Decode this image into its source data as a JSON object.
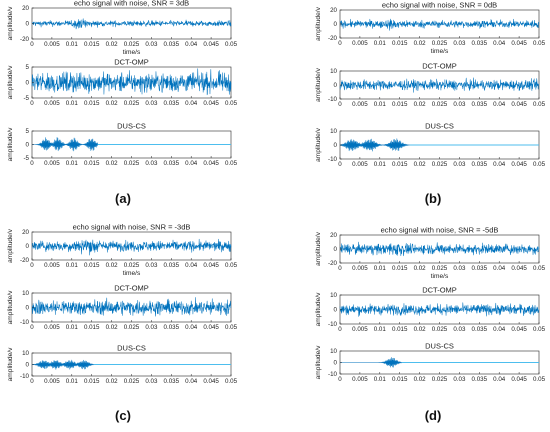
{
  "colors": {
    "signal": "#0072BD",
    "flat": "#4DBEEE",
    "axes": "#262626"
  },
  "chart_data": [
    {
      "panel": "(a)",
      "plots": [
        {
          "title": "echo signal with noise, SNR = 3dB",
          "type": "line",
          "ylabel": "amplitude/v",
          "xlabel": "time/s",
          "xlim": [
            0,
            0.05
          ],
          "ylim": [
            -20,
            20
          ],
          "yticks": [
            -20,
            0,
            20
          ],
          "noise": 2.5,
          "burst_centers": [
            0.012
          ],
          "burst_amp": 4,
          "burst_width": 0.003
        },
        {
          "title": "DCT-OMP",
          "type": "line",
          "ylabel": "amplitude/v",
          "xlabel": "",
          "xlim": [
            0,
            0.05
          ],
          "ylim": [
            -5,
            5
          ],
          "yticks": [
            -5,
            0,
            5
          ],
          "noise": 2.2
        },
        {
          "title": "DUS-CS",
          "type": "line",
          "ylabel": "amplitude/v",
          "xlabel": "",
          "xlim": [
            0,
            0.05
          ],
          "ylim": [
            -5,
            5
          ],
          "yticks": [
            -5,
            0,
            5
          ],
          "noise": 0,
          "burst_centers": [
            0.0035,
            0.0065,
            0.0105,
            0.015
          ],
          "burst_amp": 2.8,
          "burst_width": 0.0012,
          "flat_after": 0.0165
        }
      ]
    },
    {
      "panel": "(b)",
      "plots": [
        {
          "title": "echo signal with noise, SNR = 0dB",
          "type": "line",
          "ylabel": "amplitude/v",
          "xlabel": "time/s",
          "xlim": [
            0,
            0.05
          ],
          "ylim": [
            -20,
            20
          ],
          "yticks": [
            -20,
            0,
            20
          ],
          "noise": 3.5,
          "burst_centers": [
            0.013
          ],
          "burst_amp": 5,
          "burst_width": 0.003
        },
        {
          "title": "DCT-OMP",
          "type": "line",
          "ylabel": "amplitude/v",
          "xlabel": "",
          "xlim": [
            0,
            0.05
          ],
          "ylim": [
            -10,
            10
          ],
          "yticks": [
            -10,
            0,
            10
          ],
          "noise": 2.5
        },
        {
          "title": "DUS-CS",
          "type": "line",
          "ylabel": "amplitude/v",
          "xlabel": "",
          "xlim": [
            0,
            0.05
          ],
          "ylim": [
            -10,
            10
          ],
          "yticks": [
            -10,
            0,
            10
          ],
          "noise": 0,
          "burst_centers": [
            0.003,
            0.0075,
            0.014
          ],
          "burst_amp": 5,
          "burst_width": 0.0018,
          "flat_after": 0.0175
        }
      ]
    },
    {
      "panel": "(c)",
      "plots": [
        {
          "title": "echo signal with noise, SNR = -3dB",
          "type": "line",
          "ylabel": "amplitude/v",
          "xlabel": "time/s",
          "xlim": [
            0,
            0.05
          ],
          "ylim": [
            -20,
            20
          ],
          "yticks": [
            -20,
            0,
            20
          ],
          "noise": 5,
          "burst_centers": [
            0.014
          ],
          "burst_amp": 6,
          "burst_width": 0.003
        },
        {
          "title": "DCT-OMP",
          "type": "line",
          "ylabel": "amplitude/v",
          "xlabel": "",
          "xlim": [
            0,
            0.05
          ],
          "ylim": [
            -10,
            10
          ],
          "yticks": [
            -10,
            0,
            10
          ],
          "noise": 3.5
        },
        {
          "title": "DUS-CS",
          "type": "line",
          "ylabel": "amplitude/v",
          "xlabel": "",
          "xlim": [
            0,
            0.05
          ],
          "ylim": [
            -10,
            10
          ],
          "yticks": [
            -10,
            0,
            10
          ],
          "noise": 0,
          "burst_centers": [
            0.003,
            0.006,
            0.0095,
            0.013
          ],
          "burst_amp": 4.5,
          "burst_width": 0.0015,
          "flat_after": 0.0155
        }
      ]
    },
    {
      "panel": "(d)",
      "plots": [
        {
          "title": "echo signal with noise, SNR = -5dB",
          "type": "line",
          "ylabel": "amplitude/v",
          "xlabel": "time/s",
          "xlim": [
            0,
            0.05
          ],
          "ylim": [
            -20,
            20
          ],
          "yticks": [
            -20,
            0,
            20
          ],
          "noise": 5,
          "burst_centers": [
            0.014
          ],
          "burst_amp": 6,
          "burst_width": 0.003
        },
        {
          "title": "DCT-OMP",
          "type": "line",
          "ylabel": "amplitude/v",
          "xlabel": "",
          "xlim": [
            0,
            0.05
          ],
          "ylim": [
            -10,
            10
          ],
          "yticks": [
            -10,
            0,
            10
          ],
          "noise": 2.5
        },
        {
          "title": "DUS-CS",
          "type": "line",
          "ylabel": "amplitude/v",
          "xlabel": "",
          "xlim": [
            0,
            0.05
          ],
          "ylim": [
            -10,
            10
          ],
          "yticks": [
            -10,
            0,
            10
          ],
          "noise": 0,
          "burst_centers": [
            0.013
          ],
          "burst_amp": 5,
          "burst_width": 0.0015,
          "flat_after": 0.0155
        }
      ]
    }
  ],
  "xticks": [
    0,
    0.005,
    0.01,
    0.015,
    0.02,
    0.025,
    0.03,
    0.035,
    0.04,
    0.045,
    0.05
  ],
  "xtick_labels": [
    "0",
    "0.005",
    "0.01",
    "0.015",
    "0.02",
    "0.025",
    "0.03",
    "0.035",
    "0.04",
    "0.045",
    "0.05"
  ]
}
